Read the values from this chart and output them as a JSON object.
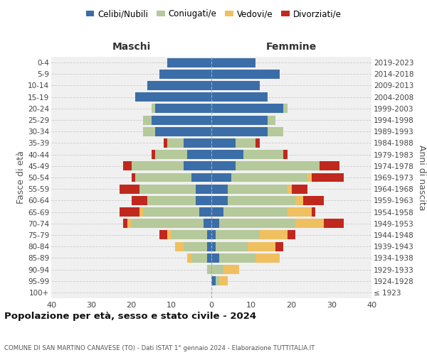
{
  "age_groups": [
    "100+",
    "95-99",
    "90-94",
    "85-89",
    "80-84",
    "75-79",
    "70-74",
    "65-69",
    "60-64",
    "55-59",
    "50-54",
    "45-49",
    "40-44",
    "35-39",
    "30-34",
    "25-29",
    "20-24",
    "15-19",
    "10-14",
    "5-9",
    "0-4"
  ],
  "birth_years": [
    "≤ 1923",
    "1924-1928",
    "1929-1933",
    "1934-1938",
    "1939-1943",
    "1944-1948",
    "1949-1953",
    "1954-1958",
    "1959-1963",
    "1964-1968",
    "1969-1973",
    "1974-1978",
    "1979-1983",
    "1984-1988",
    "1989-1993",
    "1994-1998",
    "1999-2003",
    "2004-2008",
    "2009-2013",
    "2014-2018",
    "2019-2023"
  ],
  "colors": {
    "celibi": "#3b6ea8",
    "coniugati": "#b5c99a",
    "vedovi": "#f0c060",
    "divorziati": "#c0281e"
  },
  "maschi": {
    "celibi": [
      0,
      0,
      0,
      1,
      1,
      1,
      2,
      3,
      4,
      4,
      5,
      7,
      6,
      7,
      14,
      15,
      14,
      19,
      16,
      13,
      11
    ],
    "coniugati": [
      0,
      0,
      1,
      4,
      6,
      9,
      18,
      14,
      12,
      14,
      14,
      13,
      8,
      4,
      3,
      2,
      1,
      0,
      0,
      0,
      0
    ],
    "vedovi": [
      0,
      0,
      0,
      1,
      2,
      1,
      1,
      1,
      0,
      0,
      0,
      0,
      0,
      0,
      0,
      0,
      0,
      0,
      0,
      0,
      0
    ],
    "divorziati": [
      0,
      0,
      0,
      0,
      0,
      2,
      1,
      5,
      4,
      5,
      1,
      2,
      1,
      1,
      0,
      0,
      0,
      0,
      0,
      0,
      0
    ]
  },
  "femmine": {
    "celibi": [
      0,
      1,
      0,
      2,
      1,
      1,
      2,
      3,
      4,
      4,
      5,
      6,
      8,
      6,
      14,
      14,
      18,
      14,
      12,
      17,
      11
    ],
    "coniugati": [
      0,
      1,
      3,
      9,
      8,
      11,
      19,
      16,
      17,
      15,
      19,
      21,
      10,
      5,
      4,
      2,
      1,
      0,
      0,
      0,
      0
    ],
    "vedovi": [
      0,
      2,
      4,
      6,
      7,
      7,
      7,
      6,
      2,
      1,
      1,
      0,
      0,
      0,
      0,
      0,
      0,
      0,
      0,
      0,
      0
    ],
    "divorziati": [
      0,
      0,
      0,
      0,
      2,
      2,
      5,
      1,
      5,
      4,
      8,
      5,
      1,
      1,
      0,
      0,
      0,
      0,
      0,
      0,
      0
    ]
  },
  "xlim": 40,
  "title_main": "Popolazione per età, sesso e stato civile - 2024",
  "title_sub": "COMUNE DI SAN MARTINO CANAVESE (TO) - Dati ISTAT 1° gennaio 2024 - Elaborazione TUTTITALIA.IT",
  "ylabel_left": "Fasce di età",
  "ylabel_right": "Anni di nascita",
  "xlabel_left": "Maschi",
  "xlabel_right": "Femmine",
  "legend_labels": [
    "Celibi/Nubili",
    "Coniugati/e",
    "Vedovi/e",
    "Divorziati/e"
  ],
  "grid_color": "#cccccc"
}
